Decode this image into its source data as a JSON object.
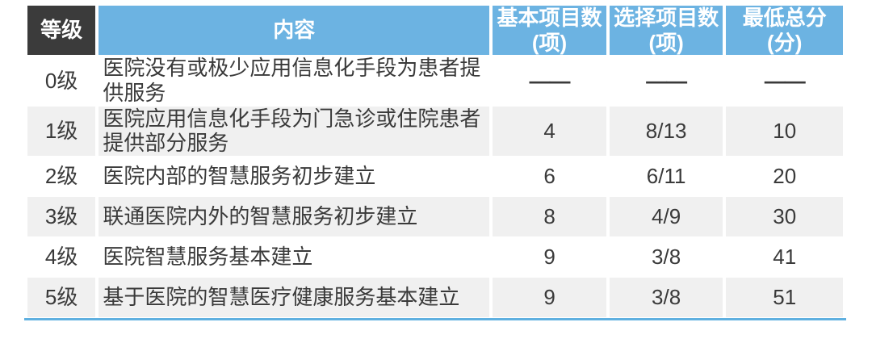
{
  "colors": {
    "header_blue": "#6cb3e2",
    "header_dark": "#3b3b3b",
    "row_stripe": "#f0f0f0",
    "bottom_rule_blue": "#5fb0e0",
    "body_text": "#3a3a3a",
    "header_text": "#ffffff"
  },
  "table": {
    "headers": {
      "level": "等级",
      "content": "内容",
      "basic": "基本项目数\n(项)",
      "optional": "选择项目数\n(项)",
      "min_score": "最低总分\n(分)"
    },
    "rows": [
      {
        "level": "0级",
        "content": "医院没有或极少应用信息化手段为患者提供服务",
        "basic": "——",
        "optional": "——",
        "min_score": "——"
      },
      {
        "level": "1级",
        "content": "医院应用信息化手段为门急诊或住院患者提供部分服务",
        "basic": "4",
        "optional": "8/13",
        "min_score": "10"
      },
      {
        "level": "2级",
        "content": "医院内部的智慧服务初步建立",
        "basic": "6",
        "optional": "6/11",
        "min_score": "20"
      },
      {
        "level": "3级",
        "content": "联通医院内外的智慧服务初步建立",
        "basic": "8",
        "optional": "4/9",
        "min_score": "30"
      },
      {
        "level": "4级",
        "content": "医院智慧服务基本建立",
        "basic": "9",
        "optional": "3/8",
        "min_score": "41"
      },
      {
        "level": "5级",
        "content": "基于医院的智慧医疗健康服务基本建立",
        "basic": "9",
        "optional": "3/8",
        "min_score": "51"
      }
    ]
  }
}
